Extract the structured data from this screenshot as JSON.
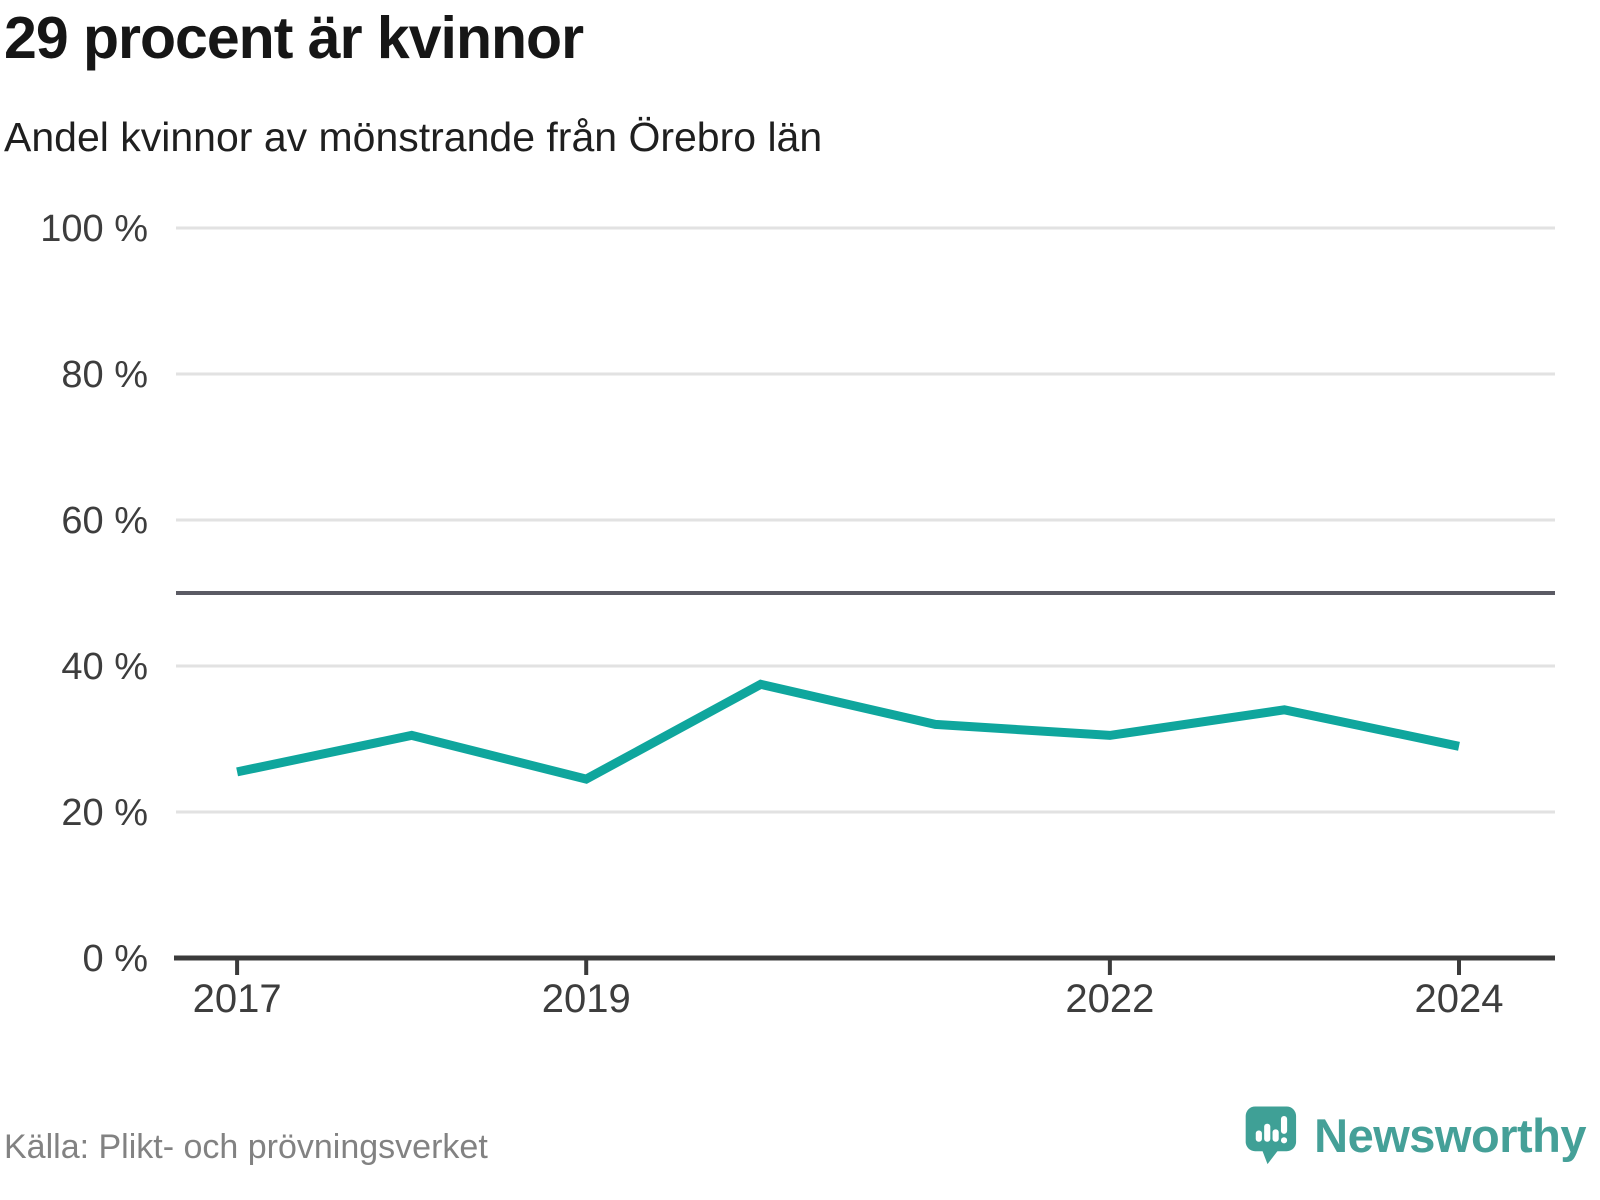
{
  "header": {
    "title": "29 procent är kvinnor",
    "subtitle": "Andel kvinnor av mönstrande från Örebro län"
  },
  "chart_data": {
    "type": "line",
    "title": "29 procent är kvinnor",
    "subtitle": "Andel kvinnor av mönstrande från Örebro län",
    "series_name": "Andel kvinnor av mönstrande (%)",
    "x": [
      2017,
      2018,
      2019,
      2020,
      2021,
      2022,
      2023,
      2024
    ],
    "values": [
      25.5,
      30.5,
      24.5,
      37.5,
      32,
      30.5,
      34,
      29
    ],
    "xlim": [
      2016.65,
      2024.55
    ],
    "ylim": [
      0,
      100
    ],
    "yticks": [
      0,
      20,
      40,
      60,
      80,
      100
    ],
    "ytick_suffix": " %",
    "xticks": [
      2017,
      2019,
      2022,
      2024
    ],
    "reference_line": 50,
    "grid": true,
    "legend": "none",
    "line_color": "#0fa69d",
    "grid_color": "#e2e2e2",
    "reference_line_color": "#5b5b64",
    "axis_color": "#3b3b3b",
    "tick_label_color": "#3d3d3d"
  },
  "footer": {
    "source": "Källa: Plikt- och prövningsverket",
    "brand": "Newsworthy"
  },
  "colors": {
    "accent_teal": "#0fa69d",
    "brand_teal": "#42a198",
    "title_text": "#161616",
    "muted_text": "#828282"
  }
}
